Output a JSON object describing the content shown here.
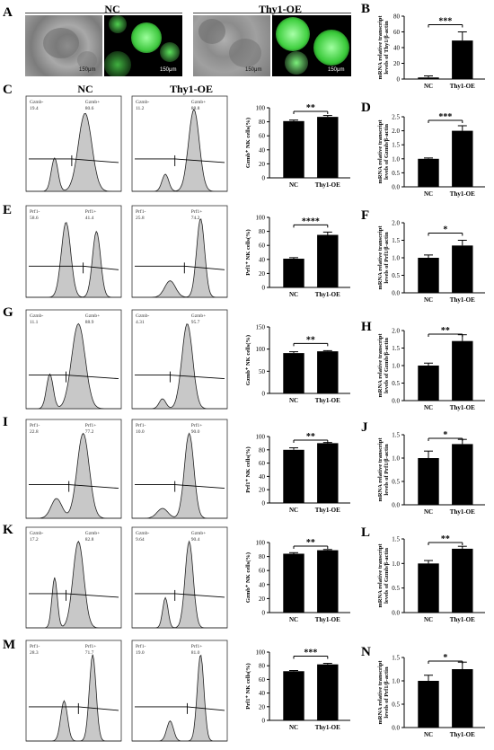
{
  "labels": {
    "A": "A",
    "B": "B",
    "C": "C",
    "D": "D",
    "E": "E",
    "F": "F",
    "G": "G",
    "H": "H",
    "I": "I",
    "J": "J",
    "K": "K",
    "L": "L",
    "M": "M",
    "N": "N"
  },
  "groupA": {
    "nc": "NC",
    "oe": "Thy1-OE",
    "scale": "150μm"
  },
  "groupC": {
    "nc": "NC",
    "oe": "Thy1-OE"
  },
  "categories": [
    "NC",
    "Thy1-OE"
  ],
  "panels": {
    "B": {
      "ylabel": "mRNA relative transcript levels of Thy1/β-actin",
      "ticks": [
        "0",
        "20",
        "40",
        "60",
        "80"
      ],
      "ylim": [
        0,
        80
      ],
      "values": [
        2,
        49
      ],
      "errors": [
        2,
        11
      ],
      "sig": "***"
    },
    "C": {
      "ylabel": "Gzmb⁺ NK cells(%)",
      "ticks": [
        "0",
        "20",
        "40",
        "60",
        "80",
        "100"
      ],
      "ylim": [
        0,
        100
      ],
      "values": [
        81,
        87
      ],
      "errors": [
        1.5,
        2
      ],
      "sig": "**",
      "flow": [
        {
          "l": "Gzmb-",
          "r": "Gzmb+",
          "lv": "19.4",
          "rv": "80.6"
        },
        {
          "l": "Gzmb-",
          "r": "Gzmb+",
          "lv": "11.2",
          "rv": "88.8"
        }
      ]
    },
    "D": {
      "ylabel": "mRNA relative transcript levels of Gzmb/β-actin",
      "ticks": [
        "0.0",
        "0.5",
        "1.0",
        "1.5",
        "2.0",
        "2.5"
      ],
      "ylim": [
        0,
        2.5
      ],
      "values": [
        1.0,
        2.0
      ],
      "errors": [
        0.03,
        0.18
      ],
      "sig": "***"
    },
    "E": {
      "ylabel": "Prf1⁺ NK cells(%)",
      "ticks": [
        "0",
        "20",
        "40",
        "60",
        "80",
        "100"
      ],
      "ylim": [
        0,
        100
      ],
      "values": [
        41,
        75
      ],
      "errors": [
        1.5,
        4
      ],
      "sig": "****",
      "flow": [
        {
          "l": "Prf1-",
          "r": "Prf1+",
          "lv": "58.6",
          "rv": "41.4"
        },
        {
          "l": "Prf1-",
          "r": "Prf1+",
          "lv": "25.8",
          "rv": "74.2"
        }
      ]
    },
    "F": {
      "ylabel": "mRNA relative transcript levels of Prf1/β-actin",
      "ticks": [
        "0.0",
        "0.5",
        "1.0",
        "1.5",
        "2.0"
      ],
      "ylim": [
        0,
        2.0
      ],
      "values": [
        1.0,
        1.35
      ],
      "errors": [
        0.08,
        0.15
      ],
      "sig": "*"
    },
    "G": {
      "ylabel": "Gzmb⁺ NK cells(%)",
      "ticks": [
        "0",
        "50",
        "100",
        "150"
      ],
      "ylim": [
        0,
        150
      ],
      "values": [
        91,
        95
      ],
      "errors": [
        3,
        1.5
      ],
      "sig": "**",
      "flow": [
        {
          "l": "Gzmb-",
          "r": "Gzmb+",
          "lv": "11.1",
          "rv": "88.9"
        },
        {
          "l": "Gzmb-",
          "r": "Gzmb+",
          "lv": "4.31",
          "rv": "95.7"
        }
      ]
    },
    "H": {
      "ylabel": "mRNA relative transcript levels of Gzmb/β-actin",
      "ticks": [
        "0.0",
        "0.5",
        "1.0",
        "1.5",
        "2.0"
      ],
      "ylim": [
        0,
        2.0
      ],
      "values": [
        1.0,
        1.7
      ],
      "errors": [
        0.07,
        0.18
      ],
      "sig": "**"
    },
    "I": {
      "ylabel": "Prf1⁺ NK cells(%)",
      "ticks": [
        "0",
        "20",
        "40",
        "60",
        "80",
        "100"
      ],
      "ylim": [
        0,
        100
      ],
      "values": [
        80,
        90
      ],
      "errors": [
        3,
        1
      ],
      "sig": "**",
      "flow": [
        {
          "l": "Prf1-",
          "r": "Prf1+",
          "lv": "22.8",
          "rv": "77.2"
        },
        {
          "l": "Prf1-",
          "r": "Prf1+",
          "lv": "10.0",
          "rv": "90.0"
        }
      ]
    },
    "J": {
      "ylabel": "mRNA relative transcript levels of Prf1/β-actin",
      "ticks": [
        "0.0",
        "0.5",
        "1.0",
        "1.5"
      ],
      "ylim": [
        0,
        1.5
      ],
      "values": [
        1.0,
        1.3
      ],
      "errors": [
        0.15,
        0.1
      ],
      "sig": "*"
    },
    "K": {
      "ylabel": "Gzmb⁺ NK cells(%)",
      "ticks": [
        "0",
        "20",
        "40",
        "60",
        "80",
        "100"
      ],
      "ylim": [
        0,
        100
      ],
      "values": [
        84,
        89
      ],
      "errors": [
        1.5,
        1
      ],
      "sig": "**",
      "flow": [
        {
          "l": "Gzmb-",
          "r": "Gzmb+",
          "lv": "17.2",
          "rv": "82.8"
        },
        {
          "l": "Gzmb-",
          "r": "Gzmb+",
          "lv": "9.64",
          "rv": "90.4"
        }
      ]
    },
    "L": {
      "ylabel": "mRNA relative transcript levels of Gzmb/β-actin",
      "ticks": [
        "0.0",
        "0.5",
        "1.0",
        "1.5"
      ],
      "ylim": [
        0,
        1.5
      ],
      "values": [
        1.0,
        1.3
      ],
      "errors": [
        0.06,
        0.05
      ],
      "sig": "**"
    },
    "M": {
      "ylabel": "Prf1⁺ NK cells(%)",
      "ticks": [
        "0",
        "20",
        "40",
        "60",
        "80",
        "100"
      ],
      "ylim": [
        0,
        100
      ],
      "values": [
        72,
        82
      ],
      "errors": [
        1,
        1.5
      ],
      "sig": "***",
      "flow": [
        {
          "l": "Prf1-",
          "r": "Prf1+",
          "lv": "28.3",
          "rv": "71.7"
        },
        {
          "l": "Prf1-",
          "r": "Prf1+",
          "lv": "19.0",
          "rv": "81.0"
        }
      ]
    },
    "N": {
      "ylabel": "mRNA relative transcript levels of Prf1/β-actin",
      "ticks": [
        "0.0",
        "0.5",
        "1.0",
        "1.5"
      ],
      "ylim": [
        0,
        1.5
      ],
      "values": [
        1.0,
        1.25
      ],
      "errors": [
        0.12,
        0.15
      ],
      "sig": "*"
    }
  },
  "colors": {
    "bar": "#000000",
    "fluor": "#5ce05c",
    "hist": "#c8c8c8"
  }
}
